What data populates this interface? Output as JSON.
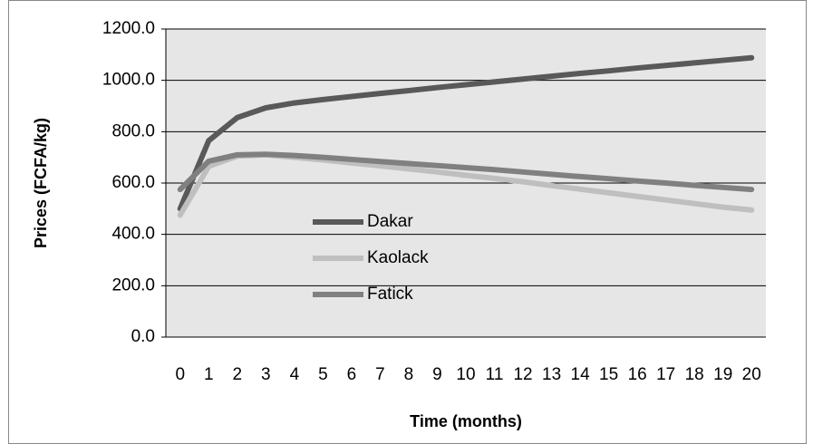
{
  "chart_data": {
    "type": "line",
    "x_label": "Time (months)",
    "y_label": "Prices (FCFA/kg)",
    "categories": [
      "0",
      "1",
      "2",
      "3",
      "4",
      "5",
      "6",
      "7",
      "8",
      "9",
      "10",
      "11",
      "12",
      "13",
      "14",
      "15",
      "16",
      "17",
      "18",
      "19",
      "20"
    ],
    "series": [
      {
        "name": "Dakar",
        "color": "#595959",
        "values": [
          500,
          765,
          855,
          893,
          912,
          925,
          937,
          949,
          960,
          972,
          983,
          994,
          1005,
          1016,
          1027,
          1037,
          1048,
          1058,
          1068,
          1078,
          1088
        ]
      },
      {
        "name": "Kaolack",
        "color": "#bfbfbf",
        "values": [
          475,
          665,
          705,
          710,
          700,
          690,
          678,
          667,
          655,
          643,
          630,
          618,
          605,
          590,
          576,
          562,
          548,
          534,
          520,
          506,
          495
        ]
      },
      {
        "name": "Fatick",
        "color": "#808080",
        "values": [
          575,
          685,
          710,
          712,
          707,
          700,
          692,
          684,
          676,
          668,
          660,
          652,
          643,
          634,
          625,
          617,
          608,
          600,
          591,
          583,
          575
        ]
      }
    ],
    "ylim": [
      0,
      1200
    ],
    "yticks": [
      {
        "value": 0,
        "label": "0.0"
      },
      {
        "value": 200,
        "label": "200.0"
      },
      {
        "value": 400,
        "label": "400.0"
      },
      {
        "value": 600,
        "label": "600.0"
      },
      {
        "value": 800,
        "label": "800.0"
      },
      {
        "value": 1000,
        "label": "1000.0"
      },
      {
        "value": 1200,
        "label": "1200.0"
      }
    ],
    "grid": true,
    "plot_background": "#e6e6e6"
  }
}
